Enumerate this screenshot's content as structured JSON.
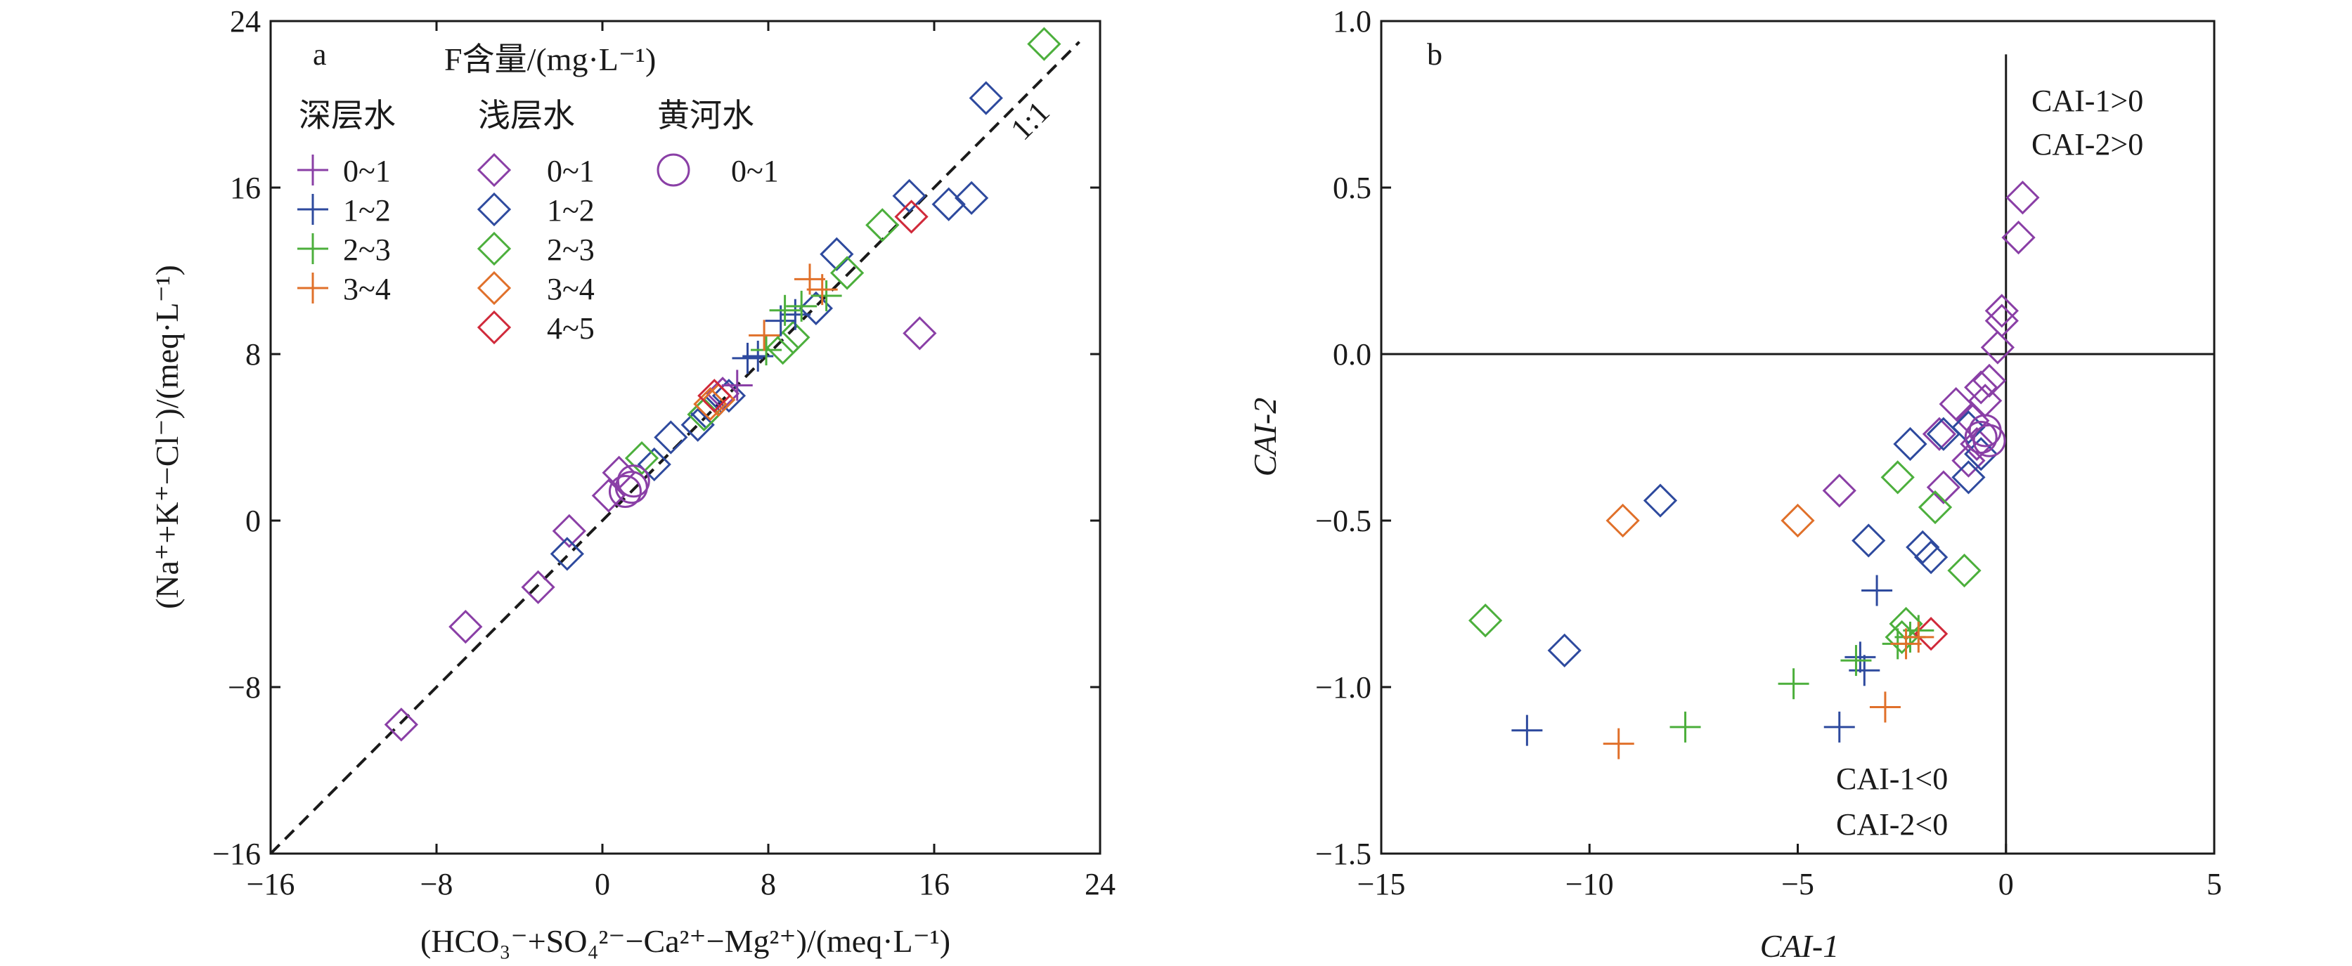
{
  "chart_data": [
    {
      "panel": "a",
      "type": "scatter",
      "xlabel": "(HCO₃⁻+SO₄²⁻−Ca²⁺−Mg²⁺)/(meq·L⁻¹)",
      "ylabel": "(Na⁺+K⁺−Cl⁻)/(meq·L⁻¹)",
      "xlim": [
        -16,
        24
      ],
      "ylim": [
        -16,
        24
      ],
      "xticks": [
        "−16",
        "−8",
        "0",
        "8",
        "16",
        "24"
      ],
      "yticks": [
        "−16",
        "−8",
        "0",
        "8",
        "16",
        "24"
      ],
      "reference_line": {
        "label": "1:1",
        "slope": 1,
        "intercept": 0,
        "style": "dashed"
      },
      "legend": {
        "title": "F含量/(mg·L⁻¹)",
        "groups": [
          {
            "name": "深层水",
            "items": [
              {
                "label": "0~1",
                "marker": "plus",
                "color": "#8a3fa6"
              },
              {
                "label": "1~2",
                "marker": "plus",
                "color": "#2e4a9e"
              },
              {
                "label": "2~3",
                "marker": "plus",
                "color": "#4caf3c"
              },
              {
                "label": "3~4",
                "marker": "plus",
                "color": "#e0702a"
              }
            ]
          },
          {
            "name": "浅层水",
            "items": [
              {
                "label": "0~1",
                "marker": "diamond",
                "color": "#8a3fa6"
              },
              {
                "label": "1~2",
                "marker": "diamond",
                "color": "#2e4a9e"
              },
              {
                "label": "2~3",
                "marker": "diamond",
                "color": "#4caf3c"
              },
              {
                "label": "3~4",
                "marker": "diamond",
                "color": "#e0702a"
              },
              {
                "label": "4~5",
                "marker": "diamond",
                "color": "#d0293a"
              }
            ]
          },
          {
            "name": "黄河水",
            "items": [
              {
                "label": "0~1",
                "marker": "circle",
                "color": "#8a3fa6"
              }
            ]
          }
        ]
      },
      "series": [
        {
          "group": "浅层水",
          "class": "0~1",
          "marker": "diamond",
          "color": "#8a3fa6",
          "points": [
            [
              -9.7,
              -9.8
            ],
            [
              -6.6,
              -5.1
            ],
            [
              -3.1,
              -3.2
            ],
            [
              -1.6,
              -0.5
            ],
            [
              0.3,
              1.2
            ],
            [
              0.8,
              2.3
            ],
            [
              5.8,
              6.1
            ],
            [
              15.3,
              9.0
            ]
          ]
        },
        {
          "group": "浅层水",
          "class": "1~2",
          "marker": "diamond",
          "color": "#2e4a9e",
          "points": [
            [
              -1.7,
              -1.6
            ],
            [
              2.5,
              2.7
            ],
            [
              3.3,
              4.0
            ],
            [
              4.6,
              4.6
            ],
            [
              5.0,
              5.2
            ],
            [
              6.1,
              6.0
            ],
            [
              10.3,
              10.2
            ],
            [
              11.3,
              12.8
            ],
            [
              14.8,
              15.6
            ],
            [
              16.7,
              15.2
            ],
            [
              17.8,
              15.5
            ],
            [
              18.5,
              20.3
            ]
          ]
        },
        {
          "group": "浅层水",
          "class": "2~3",
          "marker": "diamond",
          "color": "#4caf3c",
          "points": [
            [
              1.9,
              3.0
            ],
            [
              4.9,
              5.1
            ],
            [
              8.7,
              8.3
            ],
            [
              9.2,
              8.8
            ],
            [
              11.8,
              11.9
            ],
            [
              13.5,
              14.2
            ],
            [
              21.3,
              22.9
            ]
          ]
        },
        {
          "group": "浅层水",
          "class": "3~4",
          "marker": "diamond",
          "color": "#e0702a",
          "points": [
            [
              5.2,
              5.6
            ],
            [
              5.6,
              5.8
            ]
          ]
        },
        {
          "group": "浅层水",
          "class": "4~5",
          "marker": "diamond",
          "color": "#d0293a",
          "points": [
            [
              5.4,
              6.0
            ],
            [
              14.9,
              14.6
            ]
          ]
        },
        {
          "group": "深层水",
          "class": "0~1",
          "marker": "plus",
          "color": "#8a3fa6",
          "points": [
            [
              6.5,
              6.5
            ]
          ]
        },
        {
          "group": "深层水",
          "class": "1~2",
          "marker": "plus",
          "color": "#2e4a9e",
          "points": [
            [
              7.0,
              7.8
            ],
            [
              7.5,
              7.9
            ],
            [
              8.6,
              9.6
            ],
            [
              9.3,
              9.9
            ]
          ]
        },
        {
          "group": "深层水",
          "class": "2~3",
          "marker": "plus",
          "color": "#4caf3c",
          "points": [
            [
              7.9,
              8.2
            ],
            [
              8.8,
              10.1
            ],
            [
              9.6,
              10.3
            ],
            [
              10.8,
              10.8
            ]
          ]
        },
        {
          "group": "深层水",
          "class": "3~4",
          "marker": "plus",
          "color": "#e0702a",
          "points": [
            [
              7.8,
              8.9
            ],
            [
              10.0,
              11.6
            ],
            [
              10.6,
              11.1
            ]
          ]
        },
        {
          "group": "黄河水",
          "class": "0~1",
          "marker": "circle",
          "color": "#8a3fa6",
          "points": [
            [
              1.1,
              1.4
            ],
            [
              1.4,
              1.6
            ],
            [
              1.5,
              1.9
            ]
          ]
        }
      ]
    },
    {
      "panel": "b",
      "type": "scatter",
      "xlabel": "CAI-1",
      "ylabel": "CAI-2",
      "xlim": [
        -15,
        5
      ],
      "ylim": [
        -1.5,
        1.0
      ],
      "xticks": [
        "−15",
        "−10",
        "−5",
        "0",
        "5"
      ],
      "yticks": [
        "−1.5",
        "−1.0",
        "−0.5",
        "0.0",
        "0.5",
        "1.0"
      ],
      "quadrant_labels": [
        {
          "line1": "CAI-1>0",
          "line2": "CAI-2>0",
          "position": "upper-right"
        },
        {
          "line1": "CAI-1<0",
          "line2": "CAI-2<0",
          "position": "lower-left"
        }
      ],
      "series": [
        {
          "group": "浅层水",
          "class": "0~1",
          "marker": "diamond",
          "color": "#8a3fa6",
          "points": [
            [
              0.4,
              0.47
            ],
            [
              0.3,
              0.35
            ],
            [
              -0.1,
              0.13
            ],
            [
              -0.1,
              0.1
            ],
            [
              -0.2,
              0.02
            ],
            [
              -0.4,
              -0.08
            ],
            [
              -0.6,
              -0.1
            ],
            [
              -0.5,
              -0.14
            ],
            [
              -1.2,
              -0.15
            ],
            [
              -0.8,
              -0.2
            ],
            [
              -1.6,
              -0.24
            ],
            [
              -0.7,
              -0.27
            ],
            [
              -0.9,
              -0.32
            ],
            [
              -1.5,
              -0.4
            ],
            [
              -4.0,
              -0.41
            ]
          ]
        },
        {
          "group": "浅层水",
          "class": "1~2",
          "marker": "diamond",
          "color": "#2e4a9e",
          "points": [
            [
              -0.9,
              -0.22
            ],
            [
              -1.5,
              -0.24
            ],
            [
              -2.3,
              -0.27
            ],
            [
              -0.6,
              -0.3
            ],
            [
              -0.9,
              -0.37
            ],
            [
              -8.3,
              -0.44
            ],
            [
              -3.3,
              -0.56
            ],
            [
              -2.0,
              -0.58
            ],
            [
              -1.8,
              -0.61
            ],
            [
              -10.6,
              -0.89
            ]
          ]
        },
        {
          "group": "浅层水",
          "class": "2~3",
          "marker": "diamond",
          "color": "#4caf3c",
          "points": [
            [
              -2.6,
              -0.37
            ],
            [
              -1.7,
              -0.46
            ],
            [
              -1.0,
              -0.65
            ],
            [
              -2.4,
              -0.81
            ],
            [
              -2.5,
              -0.85
            ],
            [
              -12.5,
              -0.8
            ]
          ]
        },
        {
          "group": "浅层水",
          "class": "3~4",
          "marker": "diamond",
          "color": "#e0702a",
          "points": [
            [
              -9.2,
              -0.5
            ],
            [
              -5.0,
              -0.5
            ]
          ]
        },
        {
          "group": "浅层水",
          "class": "4~5",
          "marker": "diamond",
          "color": "#d0293a",
          "points": [
            [
              -1.8,
              -0.84
            ]
          ]
        },
        {
          "group": "深层水",
          "class": "1~2",
          "marker": "plus",
          "color": "#2e4a9e",
          "points": [
            [
              -11.5,
              -1.13
            ],
            [
              -4.0,
              -1.12
            ],
            [
              -3.4,
              -0.95
            ],
            [
              -3.1,
              -0.71
            ],
            [
              -3.5,
              -0.91
            ]
          ]
        },
        {
          "group": "深层水",
          "class": "2~3",
          "marker": "plus",
          "color": "#4caf3c",
          "points": [
            [
              -7.7,
              -1.12
            ],
            [
              -5.1,
              -0.99
            ],
            [
              -3.6,
              -0.92
            ],
            [
              -2.6,
              -0.87
            ],
            [
              -2.3,
              -0.85
            ],
            [
              -2.1,
              -0.83
            ]
          ]
        },
        {
          "group": "深层水",
          "class": "3~4",
          "marker": "plus",
          "color": "#e0702a",
          "points": [
            [
              -9.3,
              -1.17
            ],
            [
              -2.9,
              -1.06
            ],
            [
              -2.4,
              -0.87
            ],
            [
              -2.1,
              -0.85
            ]
          ]
        },
        {
          "group": "黄河水",
          "class": "0~1",
          "marker": "circle",
          "color": "#8a3fa6",
          "points": [
            [
              -0.5,
              -0.23
            ],
            [
              -0.4,
              -0.26
            ],
            [
              -0.6,
              -0.25
            ]
          ]
        }
      ]
    }
  ]
}
